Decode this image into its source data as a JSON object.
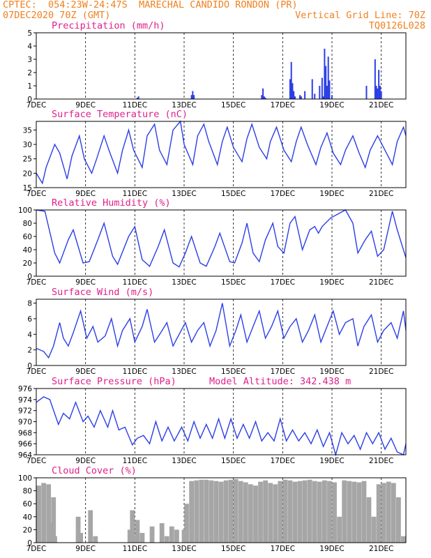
{
  "header": {
    "line1_left": "CPTEC:  054:23W-24:47S  MARECHAL CANDIDO RONDON (PR)",
    "line2_left": "07DEC2020 70Z (GMT)",
    "line2_right": "Vertical Grid Line: 70Z",
    "line3_right": "TQ0126L028"
  },
  "colors": {
    "title": "#e0208a",
    "header": "#f08020",
    "series": "#2a3ee6",
    "bars": "#2a3ee6",
    "cloud": "#a6a6a6"
  },
  "chart_data": [
    {
      "type": "bar",
      "title": "Precipitation (mm/h)",
      "ylim": [
        0,
        5
      ],
      "yticks": [
        0,
        1,
        2,
        3,
        4,
        5
      ],
      "xticks": [
        "7DEC",
        "9DEC",
        "11DEC",
        "13DEC",
        "15DEC",
        "17DEC",
        "19DEC",
        "21DEC"
      ],
      "xlim": [
        0,
        15
      ],
      "x": [
        4.1,
        4.15,
        6.3,
        6.35,
        6.4,
        9.15,
        9.2,
        9.25,
        9.3,
        10.3,
        10.35,
        10.4,
        10.45,
        10.5,
        10.7,
        10.75,
        10.9,
        11.2,
        11.3,
        11.5,
        11.6,
        11.65,
        11.7,
        11.75,
        11.8,
        11.85,
        11.9,
        12.0,
        13.4,
        13.75,
        13.8,
        13.85,
        13.9,
        13.95,
        14.0
      ],
      "values": [
        0.1,
        0.2,
        0.3,
        0.6,
        0.3,
        0.3,
        0.8,
        0.2,
        0.1,
        1.5,
        2.8,
        1.2,
        0.6,
        0.2,
        0.3,
        0.2,
        0.6,
        1.5,
        0.4,
        1.0,
        1.6,
        0.2,
        3.8,
        2.5,
        1.0,
        3.2,
        1.4,
        0.3,
        1.0,
        3.0,
        1.0,
        0.8,
        2.2,
        1.0,
        0.6
      ]
    },
    {
      "type": "line",
      "title": "Surface Temperature (nC)",
      "ylim": [
        15,
        38
      ],
      "yticks": [
        15,
        20,
        25,
        30,
        35
      ],
      "xticks": [
        "7DEC",
        "9DEC",
        "11DEC",
        "13DEC",
        "15DEC",
        "17DEC",
        "19DEC",
        "21DEC"
      ],
      "xlim": [
        0,
        15
      ],
      "x": [
        0,
        0.25,
        0.4,
        0.75,
        0.95,
        1.25,
        1.45,
        1.75,
        1.95,
        2.25,
        2.45,
        2.75,
        2.95,
        3.3,
        3.5,
        3.75,
        3.95,
        4.3,
        4.5,
        4.8,
        5.0,
        5.3,
        5.55,
        5.85,
        6.0,
        6.35,
        6.55,
        6.8,
        7.0,
        7.35,
        7.55,
        7.75,
        8.0,
        8.35,
        8.55,
        8.75,
        9.05,
        9.35,
        9.5,
        9.75,
        10.05,
        10.35,
        10.55,
        10.75,
        11.0,
        11.35,
        11.55,
        11.8,
        12.05,
        12.35,
        12.55,
        12.85,
        13.1,
        13.35,
        13.55,
        13.85,
        14.15,
        14.45,
        14.65,
        14.9,
        15.0
      ],
      "values": [
        20,
        16.5,
        22,
        30,
        27,
        18,
        26,
        33,
        25,
        20,
        25,
        33,
        28,
        20,
        28,
        35,
        28,
        22,
        33,
        37,
        28,
        23,
        35,
        38,
        30,
        23,
        33,
        37,
        31,
        23,
        31,
        36,
        29,
        24,
        32,
        37,
        29,
        25,
        31,
        36,
        28,
        24,
        31,
        36,
        30,
        23,
        29,
        34,
        27,
        23,
        28,
        33,
        27,
        22,
        28,
        33,
        28,
        23,
        31,
        36,
        33
      ]
    },
    {
      "type": "line",
      "title": "Relative Humidity (%)",
      "ylim": [
        0,
        100
      ],
      "yticks": [
        0,
        20,
        40,
        60,
        80,
        100
      ],
      "xticks": [
        "7DEC",
        "9DEC",
        "11DEC",
        "13DEC",
        "15DEC",
        "17DEC",
        "19DEC",
        "21DEC"
      ],
      "xlim": [
        0,
        15
      ],
      "x": [
        0,
        0.35,
        0.75,
        0.95,
        1.3,
        1.5,
        1.9,
        2.15,
        2.5,
        2.75,
        3.1,
        3.3,
        3.75,
        4.0,
        4.3,
        4.6,
        4.95,
        5.2,
        5.55,
        5.8,
        6.05,
        6.3,
        6.65,
        6.9,
        7.25,
        7.45,
        7.85,
        8.05,
        8.35,
        8.55,
        8.8,
        9.05,
        9.3,
        9.6,
        9.8,
        10.05,
        10.3,
        10.5,
        10.8,
        11.1,
        11.3,
        11.45,
        11.6,
        11.95,
        12.3,
        12.55,
        12.85,
        13.05,
        13.35,
        13.6,
        13.85,
        14.1,
        14.45,
        14.65,
        15.0
      ],
      "values": [
        100,
        98,
        35,
        20,
        55,
        70,
        20,
        22,
        55,
        80,
        30,
        18,
        60,
        75,
        25,
        15,
        45,
        70,
        20,
        14,
        35,
        60,
        20,
        15,
        45,
        65,
        22,
        20,
        50,
        80,
        35,
        22,
        55,
        80,
        45,
        35,
        80,
        90,
        40,
        70,
        75,
        65,
        75,
        88,
        95,
        100,
        80,
        35,
        55,
        68,
        30,
        40,
        98,
        70,
        28
      ]
    },
    {
      "type": "line",
      "title": "Surface Wind (m/s)",
      "ylim": [
        0,
        8.5
      ],
      "yticks": [
        0,
        2,
        4,
        6,
        8
      ],
      "xticks": [
        "7DEC",
        "9DEC",
        "11DEC",
        "13DEC",
        "15DEC",
        "17DEC",
        "19DEC",
        "21DEC"
      ],
      "xlim": [
        0,
        15
      ],
      "x": [
        0,
        0.3,
        0.5,
        0.7,
        0.95,
        1.1,
        1.3,
        1.5,
        1.8,
        2.05,
        2.3,
        2.5,
        2.8,
        3.05,
        3.3,
        3.5,
        3.8,
        4.0,
        4.3,
        4.5,
        4.8,
        5.05,
        5.3,
        5.55,
        5.8,
        6.05,
        6.3,
        6.55,
        6.8,
        7.05,
        7.3,
        7.55,
        7.85,
        8.1,
        8.3,
        8.55,
        8.8,
        9.05,
        9.3,
        9.55,
        9.8,
        10.05,
        10.3,
        10.55,
        10.8,
        11.05,
        11.3,
        11.55,
        11.8,
        12.05,
        12.3,
        12.55,
        12.85,
        13.05,
        13.3,
        13.6,
        13.85,
        14.1,
        14.4,
        14.65,
        14.9,
        15.0
      ],
      "values": [
        2.2,
        1.8,
        1.0,
        2.5,
        5.5,
        3.5,
        2.5,
        4.2,
        7.0,
        3.5,
        5.0,
        3.0,
        3.8,
        6.0,
        2.5,
        4.5,
        6.0,
        3.0,
        5.0,
        7.2,
        3.0,
        4.2,
        5.5,
        2.5,
        4.0,
        5.5,
        3.0,
        4.5,
        5.5,
        2.5,
        4.5,
        8.0,
        2.5,
        4.5,
        6.5,
        3.0,
        5.0,
        7.0,
        3.5,
        5.0,
        7.0,
        3.5,
        5.0,
        6.0,
        3.0,
        4.5,
        6.5,
        3.0,
        5.0,
        7.0,
        4.0,
        5.5,
        6.0,
        2.5,
        5.0,
        6.5,
        3.0,
        4.5,
        5.5,
        3.5,
        7.0,
        4.5
      ]
    },
    {
      "type": "line",
      "title": "Surface Pressure (hPa)",
      "annotation": "Model Altitude: 342.438 m",
      "ylim": [
        964,
        976
      ],
      "yticks": [
        964,
        966,
        968,
        970,
        972,
        974,
        976
      ],
      "xticks": [
        "7DEC",
        "9DEC",
        "11DEC",
        "13DEC",
        "15DEC",
        "17DEC",
        "19DEC",
        "21DEC"
      ],
      "xlim": [
        0,
        15
      ],
      "x": [
        0,
        0.3,
        0.55,
        0.9,
        1.1,
        1.35,
        1.6,
        1.9,
        2.1,
        2.35,
        2.6,
        2.9,
        3.1,
        3.35,
        3.6,
        3.9,
        4.1,
        4.35,
        4.6,
        4.85,
        5.1,
        5.35,
        5.6,
        5.9,
        6.15,
        6.4,
        6.65,
        6.9,
        7.15,
        7.4,
        7.65,
        7.9,
        8.15,
        8.4,
        8.65,
        8.9,
        9.15,
        9.4,
        9.65,
        9.9,
        10.15,
        10.4,
        10.65,
        10.9,
        11.15,
        11.4,
        11.65,
        11.9,
        12.15,
        12.4,
        12.65,
        12.9,
        13.15,
        13.4,
        13.65,
        13.9,
        14.15,
        14.4,
        14.65,
        14.9,
        15.0
      ],
      "values": [
        973.5,
        974.5,
        974,
        969.5,
        971.5,
        970.5,
        973.5,
        970,
        971,
        969,
        972,
        969,
        972,
        968.5,
        969,
        965.8,
        967,
        967.5,
        966,
        970,
        966.5,
        969,
        966.5,
        969,
        966.5,
        970,
        967,
        969.5,
        967,
        970.5,
        967,
        970.5,
        967,
        969.5,
        967,
        970,
        966.5,
        968,
        966.5,
        970.5,
        966.5,
        968.5,
        966.5,
        968,
        966,
        968.5,
        965.5,
        968,
        964,
        968,
        966,
        967.5,
        965,
        968,
        966,
        968,
        965,
        967,
        964.5,
        964,
        966
      ]
    },
    {
      "type": "area",
      "title": "Cloud Cover (%)",
      "ylim": [
        0,
        100
      ],
      "yticks": [
        0,
        20,
        40,
        60,
        80,
        100
      ],
      "xticks": [
        "7DEC",
        "9DEC",
        "11DEC",
        "13DEC",
        "15DEC",
        "17DEC",
        "19DEC",
        "21DEC"
      ],
      "xlim": [
        0,
        15
      ],
      "x": [
        0.1,
        0.3,
        0.5,
        0.6,
        0.7,
        0.75,
        0.8,
        1.0,
        1.5,
        1.7,
        1.8,
        2.0,
        2.2,
        2.4,
        2.6,
        2.8,
        3.0,
        3.2,
        3.4,
        3.6,
        3.8,
        3.9,
        4.0,
        4.1,
        4.3,
        4.5,
        4.7,
        4.9,
        5.1,
        5.3,
        5.5,
        5.7,
        5.8,
        5.9,
        6.0,
        6.1,
        6.3,
        6.5,
        6.7,
        6.9,
        7.1,
        7.3,
        7.5,
        7.7,
        7.9,
        8.1,
        8.3,
        8.5,
        8.7,
        8.9,
        9.1,
        9.3,
        9.5,
        9.7,
        9.9,
        10.1,
        10.3,
        10.5,
        10.7,
        10.9,
        11.1,
        11.3,
        11.5,
        11.7,
        11.9,
        12.1,
        12.3,
        12.5,
        12.7,
        12.9,
        13.1,
        13.3,
        13.5,
        13.7,
        13.9,
        14.1,
        14.3,
        14.5,
        14.7,
        14.9
      ],
      "values": [
        88,
        92,
        90,
        30,
        70,
        10,
        0,
        0,
        0,
        40,
        15,
        0,
        50,
        10,
        0,
        0,
        0,
        0,
        0,
        0,
        20,
        50,
        10,
        35,
        15,
        0,
        25,
        0,
        30,
        10,
        25,
        20,
        0,
        0,
        20,
        60,
        95,
        96,
        97,
        97,
        96,
        95,
        94,
        96,
        97,
        98,
        95,
        93,
        90,
        88,
        94,
        96,
        92,
        90,
        95,
        97,
        96,
        94,
        95,
        96,
        97,
        95,
        94,
        96,
        95,
        93,
        40,
        96,
        95,
        94,
        93,
        95,
        70,
        40,
        90,
        92,
        94,
        92,
        70,
        10
      ]
    }
  ]
}
